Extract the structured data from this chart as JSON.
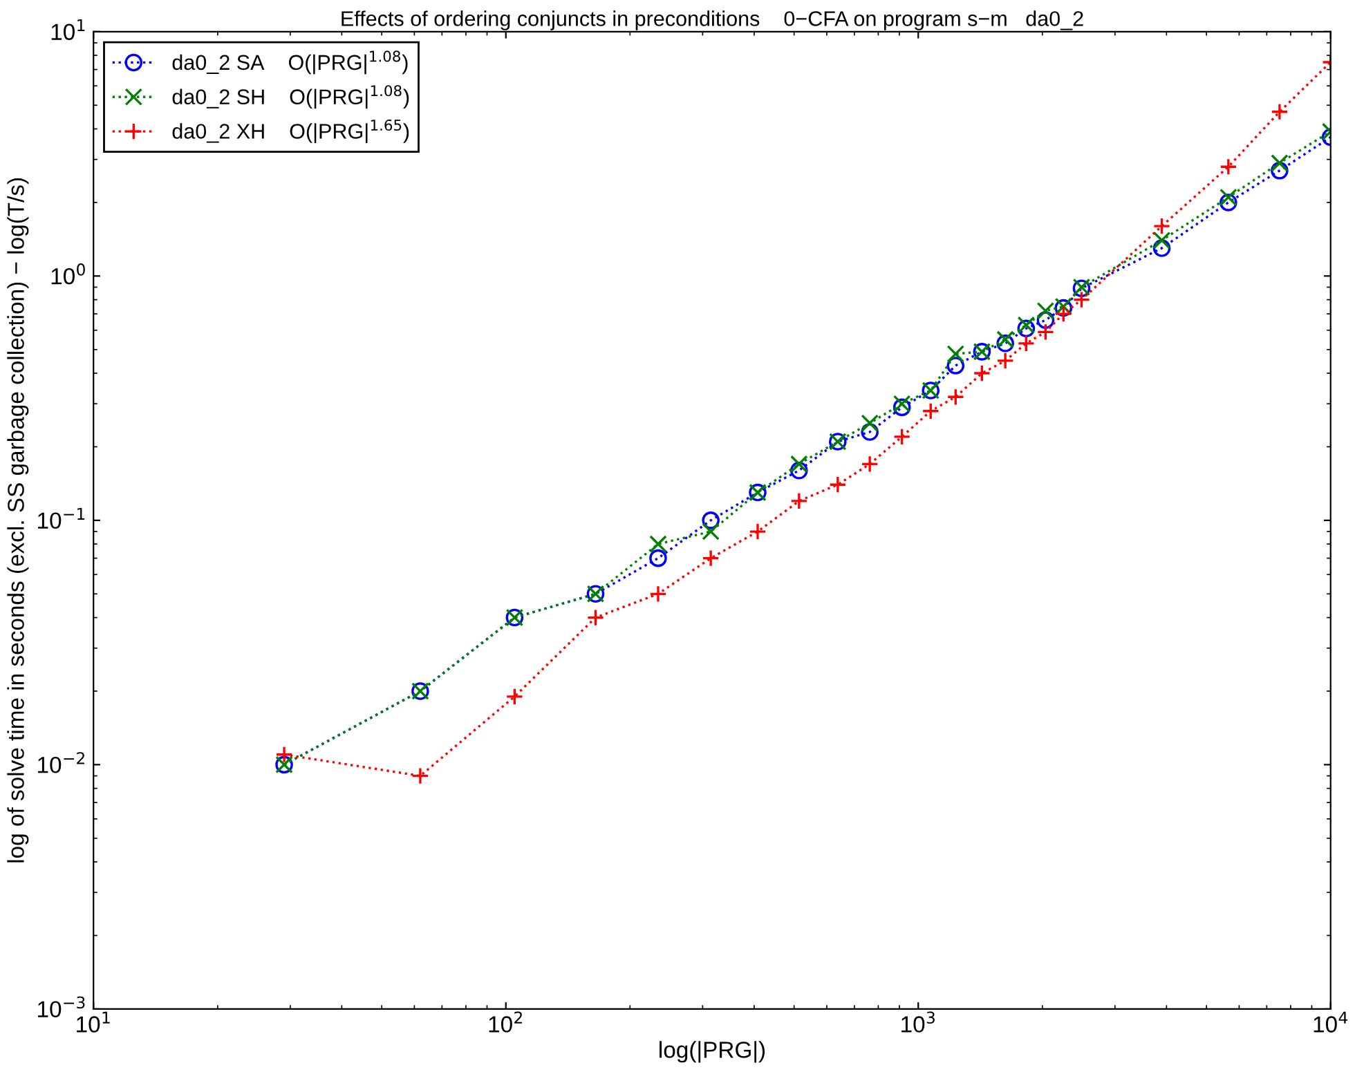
{
  "chart_data": {
    "type": "line",
    "title": "Effects of ordering conjuncts in preconditions    0−CFA on program s−m   da0_2",
    "xlabel": "log(|PRG|)",
    "ylabel": "log of solve time in seconds (excl. SS garbage collection) − log(T/s)",
    "x": [
      29,
      62,
      105,
      165,
      234,
      314,
      408,
      514,
      638,
      763,
      913,
      1072,
      1232,
      1427,
      1626,
      1827,
      2036,
      2250,
      2489,
      3896,
      5650,
      7520,
      10000
    ],
    "series": [
      {
        "name": "da0_2 SA    O(|PRG|$^{1.08}$)",
        "color": "#0000ff",
        "marker": "circle",
        "values": [
          0.01,
          0.02,
          0.04,
          0.05,
          0.07,
          0.1,
          0.13,
          0.16,
          0.21,
          0.23,
          0.29,
          0.34,
          0.43,
          0.49,
          0.53,
          0.61,
          0.66,
          0.74,
          0.89,
          1.3,
          2.0,
          2.7,
          3.7
        ]
      },
      {
        "name": "da0_2 SH    O(|PRG|$^{1.08}$)",
        "color": "#008000",
        "marker": "cross",
        "values": [
          0.01,
          0.02,
          0.04,
          0.05,
          0.08,
          0.09,
          0.13,
          0.17,
          0.21,
          0.25,
          0.3,
          0.34,
          0.48,
          0.49,
          0.55,
          0.63,
          0.72,
          0.75,
          0.9,
          1.4,
          2.1,
          2.9,
          3.9
        ]
      },
      {
        "name": "da0_2 XH    O(|PRG|$^{1.65}$)",
        "color": "#ff0000",
        "marker": "plus",
        "values": [
          0.011,
          0.009,
          0.019,
          0.04,
          0.05,
          0.07,
          0.09,
          0.12,
          0.14,
          0.17,
          0.22,
          0.28,
          0.32,
          0.4,
          0.45,
          0.53,
          0.59,
          0.7,
          0.8,
          1.6,
          2.8,
          4.7,
          7.5
        ]
      }
    ],
    "log": "xy",
    "xlim": [
      10,
      10000
    ],
    "ylim": [
      0.001,
      10
    ],
    "xticks": [
      {
        "value": 10,
        "label": "10$^{1}$"
      },
      {
        "value": 100,
        "label": "10$^{2}$"
      },
      {
        "value": 1000,
        "label": "10$^{3}$"
      },
      {
        "value": 10000,
        "label": "10$^{4}$"
      }
    ],
    "yticks": [
      {
        "value": 0.001,
        "label": "10$^{−3}$"
      },
      {
        "value": 0.01,
        "label": "10$^{−2}$"
      },
      {
        "value": 0.1,
        "label": "10$^{−1}$"
      },
      {
        "value": 1,
        "label": "10$^{0}$"
      },
      {
        "value": 10,
        "label": "10$^{1}$"
      }
    ],
    "line_style": "dotted",
    "grid": false,
    "legend": "top left"
  }
}
